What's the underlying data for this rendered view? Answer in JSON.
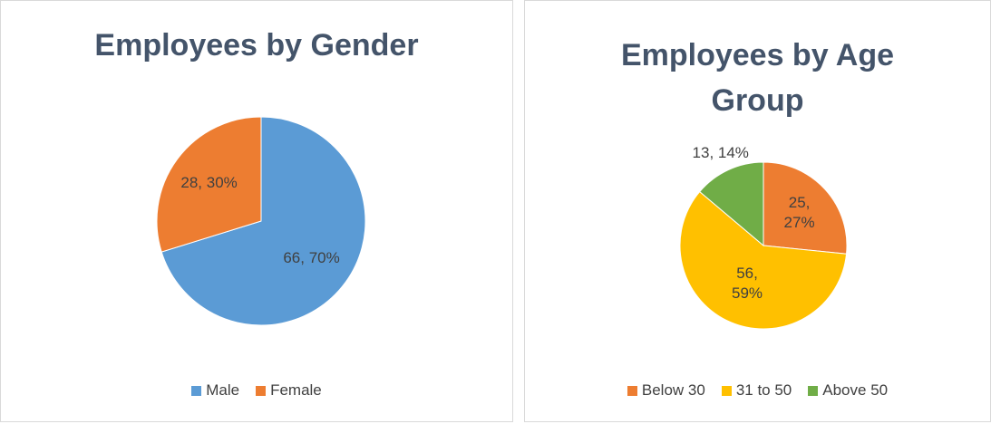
{
  "chart_data": [
    {
      "type": "pie",
      "title": "Employees by Gender",
      "categories": [
        "Male",
        "Female"
      ],
      "values": [
        66,
        28
      ],
      "value_labels": [
        "66, 70%",
        "28, 30%"
      ],
      "colors": [
        "#5b9bd5",
        "#ed7d31"
      ]
    },
    {
      "type": "pie",
      "title": "Employees by Age Group",
      "categories": [
        "Below 30",
        "31 to 50",
        "Above 50"
      ],
      "values": [
        25,
        56,
        13
      ],
      "value_labels": [
        "25, 27%",
        "56, 59%",
        "13, 14%"
      ],
      "colors": [
        "#ed7d31",
        "#ffc000",
        "#70ad47"
      ]
    }
  ]
}
